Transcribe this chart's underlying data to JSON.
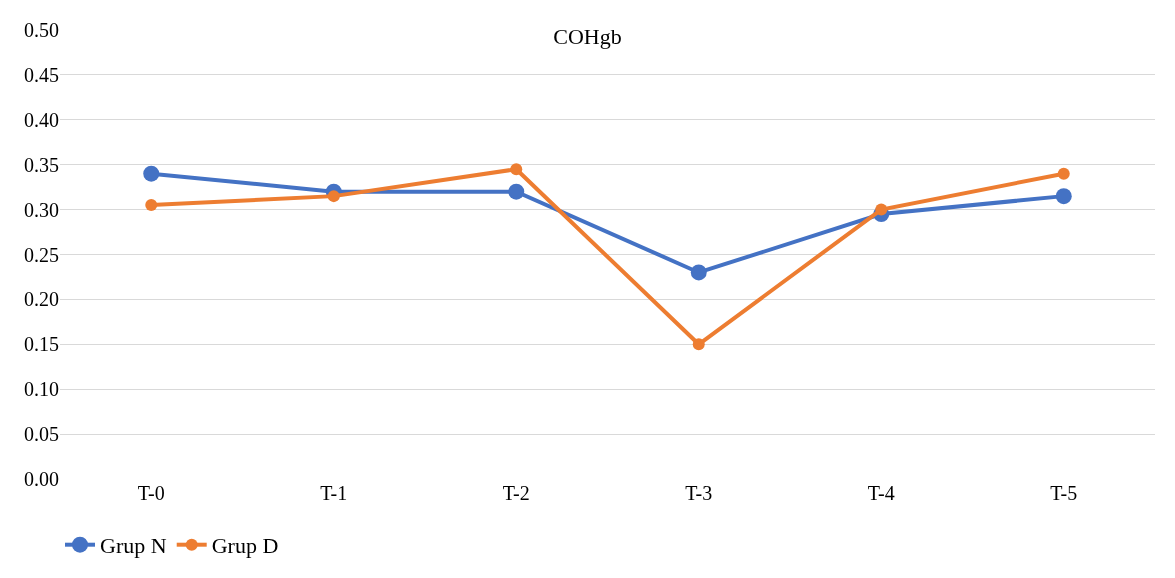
{
  "chart_data": {
    "type": "line",
    "title": "COHgb",
    "categories": [
      "T-0",
      "T-1",
      "T-2",
      "T-3",
      "T-4",
      "T-5"
    ],
    "series": [
      {
        "name": "Grup N",
        "color": "#4472c4",
        "values": [
          0.34,
          0.32,
          0.32,
          0.23,
          0.295,
          0.315
        ]
      },
      {
        "name": "Grup D",
        "color": "#ed7d31",
        "values": [
          0.305,
          0.315,
          0.345,
          0.15,
          0.3,
          0.34
        ]
      }
    ],
    "ylim": [
      0,
      0.5
    ],
    "yticks": [
      {
        "value": 0,
        "label": "0.00"
      },
      {
        "value": 0.05,
        "label": "0.05"
      },
      {
        "value": 0.1,
        "label": "0.10"
      },
      {
        "value": 0.15,
        "label": "0.15"
      },
      {
        "value": 0.2,
        "label": "0.20"
      },
      {
        "value": 0.25,
        "label": "0.25"
      },
      {
        "value": 0.3,
        "label": "0.30"
      },
      {
        "value": 0.35,
        "label": "0.35"
      },
      {
        "value": 0.4,
        "label": "0.40"
      },
      {
        "value": 0.45,
        "label": "0.45"
      },
      {
        "value": 0.5,
        "label": "0.50"
      }
    ],
    "grid": "y",
    "legend": "bottom left",
    "marker": "circle",
    "line_style": "solid"
  }
}
